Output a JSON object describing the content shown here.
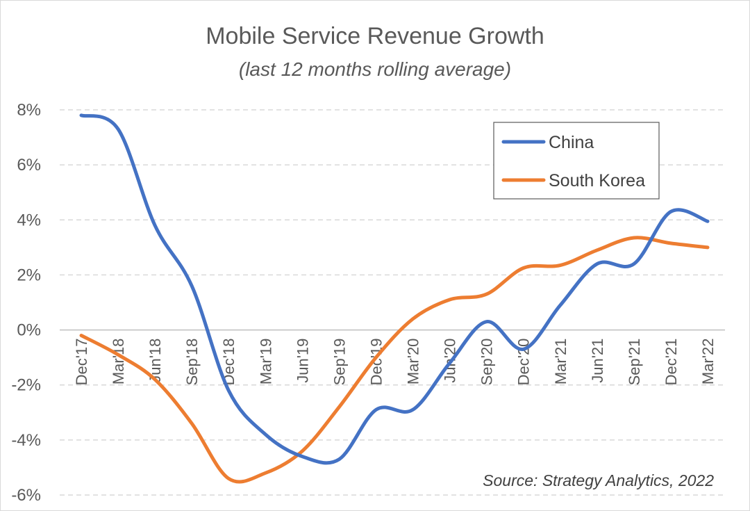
{
  "chart_data": {
    "type": "line",
    "title": "Mobile Service Revenue Growth",
    "subtitle": "(last 12 months rolling average)",
    "source": "Source: Strategy Analytics, 2022",
    "categories": [
      "Dec'17",
      "Mar'18",
      "Jun'18",
      "Sep'18",
      "Dec'18",
      "Mar'19",
      "Jun'19",
      "Sep'19",
      "Dec'19",
      "Mar'20",
      "Jun'20",
      "Sep'20",
      "Dec'20",
      "Mar'21",
      "Jun'21",
      "Sep'21",
      "Dec'21",
      "Mar'22"
    ],
    "y_ticks": [
      "8%",
      "6%",
      "4%",
      "2%",
      "0%",
      "-2%",
      "-4%",
      "-6%"
    ],
    "ylim": [
      -6,
      8
    ],
    "grid": true,
    "legend_position": "top-right",
    "series": [
      {
        "name": "China",
        "color": "#4472C4",
        "values": [
          7.8,
          7.3,
          3.8,
          1.6,
          -2.2,
          -3.8,
          -4.6,
          -4.7,
          -2.9,
          -2.9,
          -1.2,
          0.3,
          -0.7,
          0.9,
          2.4,
          2.4,
          4.3,
          3.95
        ]
      },
      {
        "name": "South Korea",
        "color": "#ED7D31",
        "values": [
          -0.2,
          -0.9,
          -1.8,
          -3.4,
          -5.4,
          -5.2,
          -4.4,
          -2.8,
          -1.0,
          0.4,
          1.1,
          1.3,
          2.25,
          2.35,
          2.9,
          3.35,
          3.15,
          3.0
        ]
      }
    ]
  }
}
